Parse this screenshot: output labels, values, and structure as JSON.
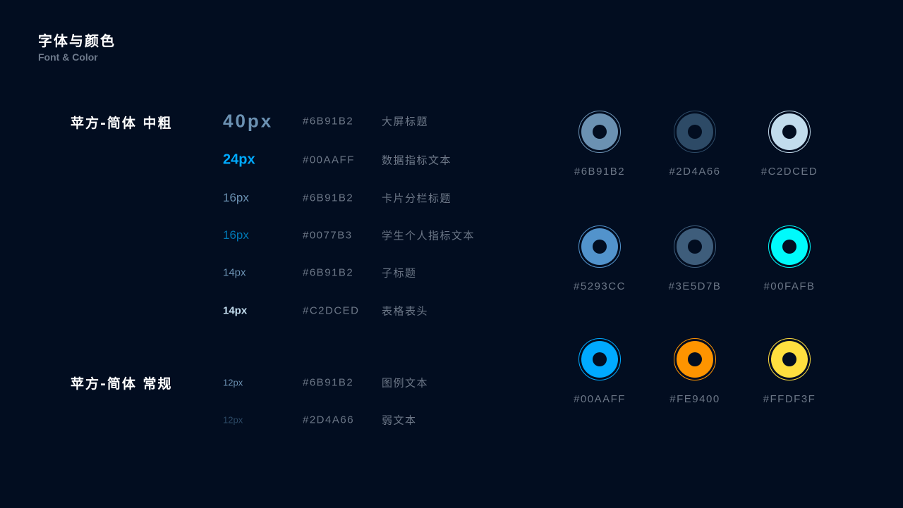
{
  "header": {
    "title": "字体与颜色",
    "subtitle": "Font & Color"
  },
  "fonts": [
    {
      "name": "苹方-简体 中粗",
      "rows": [
        {
          "size": "40px",
          "hex": "#6B91B2",
          "desc": "大屏标题",
          "color": "#6B91B2"
        },
        {
          "size": "24px",
          "hex": "#00AAFF",
          "desc": "数据指标文本",
          "color": "#00AAFF"
        },
        {
          "size": "16px",
          "hex": "#6B91B2",
          "desc": "卡片分栏标题",
          "color": "#6B91B2"
        },
        {
          "size": "16px",
          "hex": "#0077B3",
          "desc": "学生个人指标文本",
          "color": "#0077B3"
        },
        {
          "size": "14px",
          "hex": "#6B91B2",
          "desc": "子标题",
          "color": "#6B91B2"
        },
        {
          "size": "14px",
          "hex": "#C2DCED",
          "desc": "表格表头",
          "color": "#C2DCED"
        }
      ]
    },
    {
      "name": "苹方-简体 常规",
      "rows": [
        {
          "size": "12px",
          "hex": "#6B91B2",
          "desc": "图例文本",
          "color": "#6B91B2"
        },
        {
          "size": "12px",
          "hex": "#2D4A66",
          "desc": "弱文本",
          "color": "#2D4A66"
        }
      ]
    }
  ],
  "swatches": [
    "#6B91B2",
    "#2D4A66",
    "#C2DCED",
    "#5293CC",
    "#3E5D7B",
    "#00FAFB",
    "#00AAFF",
    "#FE9400",
    "#FFDF3F"
  ]
}
